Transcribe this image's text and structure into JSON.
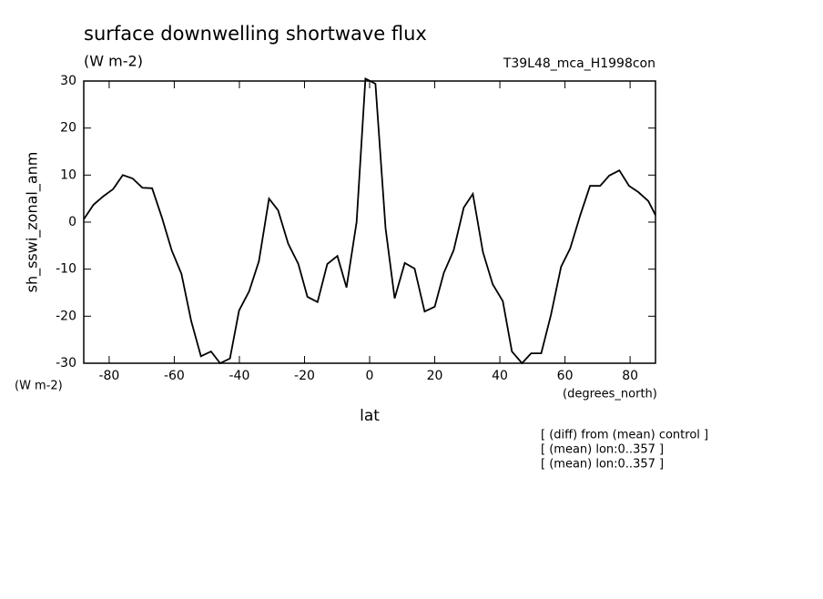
{
  "chart_data": {
    "type": "line",
    "title": "surface downwelling shortwave flux",
    "subtitle": "(W m-2)",
    "run_label": "T39L48_mca_H1998con",
    "y_label": "sh_sswi_zonal_anm",
    "y_units": "(W m-2)",
    "x_units": "(degrees_north)",
    "x_label": "lat",
    "notes": [
      "[ (diff) from (mean) control ]",
      "[ (mean) lon:0..357 ]",
      "[ (mean) lon:0..357 ]"
    ],
    "x": [
      -87.8,
      -84.8,
      -81.8,
      -78.8,
      -75.8,
      -72.8,
      -69.8,
      -66.8,
      -63.8,
      -60.8,
      -57.8,
      -54.8,
      -51.8,
      -48.7,
      -45.9,
      -42.9,
      -40.1,
      -37.0,
      -34.0,
      -30.9,
      -28.1,
      -25.0,
      -21.9,
      -19.1,
      -16.0,
      -13.0,
      -9.9,
      -7.1,
      -4.0,
      -1.3,
      0.2,
      1.8,
      4.9,
      7.7,
      10.8,
      13.8,
      16.9,
      20.0,
      22.8,
      25.8,
      28.9,
      31.7,
      34.8,
      37.8,
      40.9,
      43.7,
      46.8,
      49.6,
      52.7,
      55.7,
      58.8,
      61.6,
      64.7,
      67.7,
      70.8,
      73.6,
      76.7,
      79.7,
      82.5,
      85.6,
      87.8
    ],
    "series": [
      {
        "name": "sh_sswi_zonal_anm",
        "color": "#000000",
        "values": [
          0.6,
          3.7,
          5.5,
          7,
          10,
          9.3,
          7.3,
          7.2,
          1,
          -6,
          -11,
          -21,
          -28.5,
          -27.5,
          -30,
          -29,
          -18.8,
          -14.7,
          -8.3,
          5,
          2.5,
          -4.6,
          -8.9,
          -15.9,
          -17,
          -8.9,
          -7.2,
          -13.9,
          0,
          30.5,
          30,
          29.4,
          -1.3,
          -16.2,
          -8.7,
          -9.9,
          -19,
          -18,
          -10.8,
          -6,
          3.1,
          6,
          -6.4,
          -13.2,
          -16.8,
          -27.5,
          -30,
          -27.9,
          -27.9,
          -19.7,
          -9.5,
          -5.6,
          1.5,
          7.7,
          7.7,
          9.9,
          11,
          7.7,
          6.4,
          4.5,
          1.5
        ]
      }
    ],
    "xlim": [
      -87.8,
      87.8
    ],
    "ylim": [
      -30,
      30
    ],
    "xticks": [
      -80,
      -60,
      -40,
      -20,
      0,
      20,
      40,
      60,
      80
    ],
    "yticks": [
      -30,
      -20,
      -10,
      0,
      10,
      20,
      30
    ]
  }
}
